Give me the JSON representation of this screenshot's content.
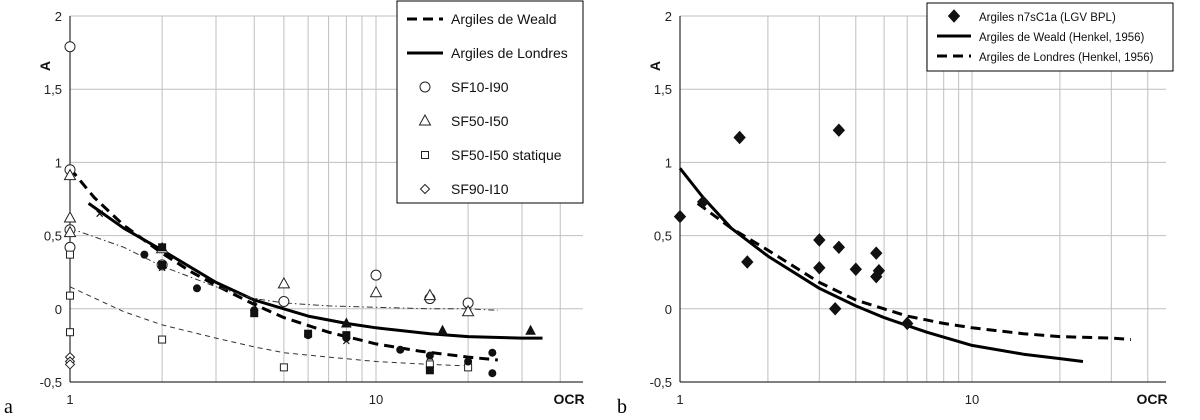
{
  "chart_data": [
    {
      "panel": "a",
      "type": "line",
      "xscale": "log",
      "xlim": [
        1,
        40
      ],
      "ylim": [
        -0.5,
        2
      ],
      "ylabel": "A",
      "xlabel": "OCR",
      "xticks": [
        "1",
        "10"
      ],
      "yticks": [
        "-0,5",
        "0",
        "0,5",
        "1",
        "1,5",
        "2"
      ],
      "grid": true,
      "legend_position": "top-right",
      "series": [
        {
          "name": "Argiles de Weald",
          "kind": "curve",
          "style": "dashed-bold",
          "x": [
            1,
            1.2,
            1.5,
            2,
            2.5,
            3,
            4,
            5,
            7,
            10,
            14,
            20,
            25
          ],
          "y": [
            0.96,
            0.76,
            0.57,
            0.38,
            0.25,
            0.16,
            0.03,
            -0.06,
            -0.16,
            -0.24,
            -0.29,
            -0.33,
            -0.35
          ]
        },
        {
          "name": "Argiles de Londres",
          "kind": "curve",
          "style": "solid-bold",
          "x": [
            1.15,
            1.5,
            2,
            3,
            4,
            6,
            8,
            10,
            15,
            20,
            30,
            35
          ],
          "y": [
            0.72,
            0.55,
            0.4,
            0.18,
            0.06,
            -0.05,
            -0.1,
            -0.13,
            -0.17,
            -0.19,
            -0.2,
            -0.2
          ]
        },
        {
          "name": "SF10-I90",
          "kind": "markers",
          "marker": "circle",
          "x": [
            1,
            1,
            1,
            1,
            2,
            5,
            10,
            15,
            20
          ],
          "y": [
            1.79,
            0.95,
            0.54,
            0.42,
            0.3,
            0.05,
            0.23,
            0.07,
            0.04
          ]
        },
        {
          "name": "SF50-I50",
          "kind": "markers",
          "marker": "triangle",
          "x": [
            1,
            1,
            1,
            2,
            5,
            10,
            15,
            20
          ],
          "y": [
            0.91,
            0.62,
            0.52,
            0.41,
            0.17,
            0.11,
            0.09,
            -0.02
          ]
        },
        {
          "name": "SF50-I50 statique",
          "kind": "markers",
          "marker": "square",
          "x": [
            1,
            1,
            1,
            2,
            5,
            15,
            20
          ],
          "y": [
            0.37,
            0.09,
            -0.16,
            -0.21,
            -0.4,
            -0.38,
            -0.4
          ]
        },
        {
          "name": "SF90-I10",
          "kind": "markers",
          "marker": "diamond",
          "x": [
            1,
            1,
            1
          ],
          "y": [
            -0.33,
            -0.36,
            -0.38
          ]
        },
        {
          "name": "",
          "kind": "markers",
          "marker": "filled-circle",
          "x": [
            1.75,
            2,
            2.6,
            4,
            6,
            8,
            12,
            15,
            20,
            24,
            24
          ],
          "y": [
            0.37,
            0.3,
            0.14,
            -0.01,
            -0.18,
            -0.2,
            -0.28,
            -0.32,
            -0.36,
            -0.3,
            -0.44
          ]
        },
        {
          "name": "",
          "kind": "markers",
          "marker": "filled-square",
          "x": [
            2,
            2,
            4,
            6,
            8,
            15
          ],
          "y": [
            0.42,
            0.3,
            -0.03,
            -0.17,
            -0.18,
            -0.42
          ]
        },
        {
          "name": "",
          "kind": "markers",
          "marker": "filled-triangle",
          "x": [
            8,
            16.5,
            32
          ],
          "y": [
            -0.1,
            -0.15,
            -0.15
          ]
        },
        {
          "name": "",
          "kind": "markers",
          "marker": "cross",
          "x": [
            1.25,
            2,
            4,
            8,
            15
          ],
          "y": [
            0.65,
            0.28,
            0.05,
            -0.22,
            -0.33
          ]
        },
        {
          "name": "",
          "kind": "curve",
          "style": "dash-dot-thin",
          "x": [
            1,
            1.5,
            2,
            3,
            4,
            5,
            7,
            10,
            15,
            20,
            25
          ],
          "y": [
            0.55,
            0.42,
            0.29,
            0.15,
            0.07,
            0.04,
            0.02,
            0.01,
            0,
            0,
            -0.01
          ]
        },
        {
          "name": "",
          "kind": "curve",
          "style": "dashed-thin",
          "x": [
            1,
            1.5,
            2,
            3,
            4,
            5,
            7,
            10,
            15,
            20
          ],
          "y": [
            0.15,
            -0.02,
            -0.11,
            -0.2,
            -0.26,
            -0.3,
            -0.33,
            -0.36,
            -0.38,
            -0.39
          ]
        }
      ]
    },
    {
      "panel": "b",
      "type": "line",
      "xscale": "log",
      "xlim": [
        1,
        40
      ],
      "ylim": [
        -0.5,
        2
      ],
      "ylabel": "A",
      "xlabel": "OCR",
      "xticks": [
        "1",
        "10"
      ],
      "yticks": [
        "-0,5",
        "0",
        "0,5",
        "1",
        "1,5",
        "2"
      ],
      "grid": true,
      "legend_position": "top-right",
      "series": [
        {
          "name": "Argiles n7sC1a (LGV BPL)",
          "kind": "markers",
          "marker": "filled-diamond",
          "x": [
            1,
            1.2,
            1.6,
            1.7,
            3,
            3,
            3.5,
            3.5,
            3.4,
            4,
            4.7,
            4.7,
            4.8,
            6
          ],
          "y": [
            0.63,
            0.73,
            1.17,
            0.32,
            0.47,
            0.28,
            1.22,
            0.42,
            0,
            0.27,
            0.38,
            0.22,
            0.26,
            -0.1
          ]
        },
        {
          "name": "Argiles de Weald (Henkel, 1956)",
          "kind": "curve",
          "style": "solid-bold",
          "x": [
            1,
            1.2,
            1.5,
            2,
            3,
            4,
            5,
            7,
            10,
            15,
            20,
            24
          ],
          "y": [
            0.96,
            0.76,
            0.55,
            0.36,
            0.14,
            0.02,
            -0.06,
            -0.16,
            -0.25,
            -0.31,
            -0.34,
            -0.36
          ]
        },
        {
          "name": "Argiles de Londres (Henkel, 1956)",
          "kind": "curve",
          "style": "dashed-bold",
          "x": [
            1.15,
            1.5,
            2,
            3,
            4,
            6,
            8,
            10,
            15,
            20,
            30,
            35
          ],
          "y": [
            0.72,
            0.55,
            0.4,
            0.18,
            0.06,
            -0.05,
            -0.1,
            -0.13,
            -0.17,
            -0.19,
            -0.2,
            -0.21
          ]
        }
      ]
    }
  ],
  "panel_labels": [
    "a",
    "b"
  ]
}
